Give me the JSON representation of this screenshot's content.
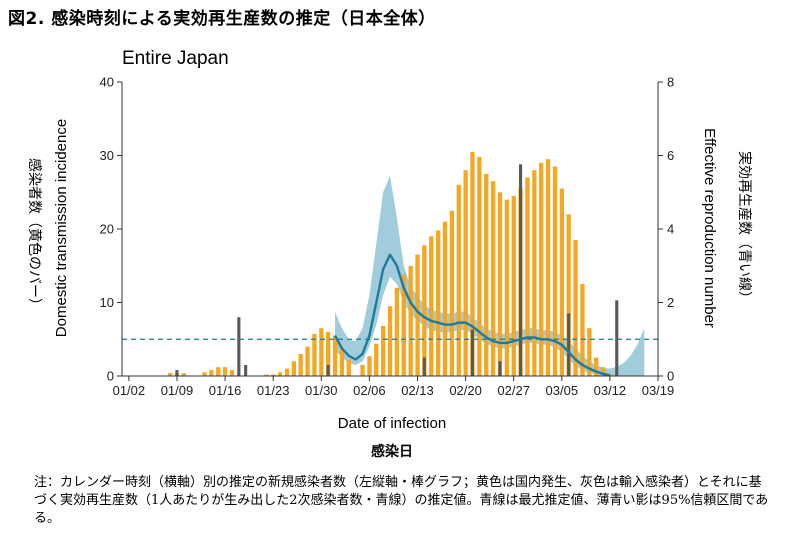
{
  "figure": {
    "title": "図2.  感染時刻による実効再生産数の推定（日本全体）",
    "note": "注：カレンダー時刻（横軸）別の推定の新規感染者数（左縦軸・棒グラフ；黄色は国内発生、灰色は輸入感染者）とそれに基づく実効再生産数（1人あたりが生み出した2次感染者数・青線）の推定値。青線は最尤推定値、薄青い影は95%信頼区間である。"
  },
  "chart_data": {
    "type": "bar",
    "title": "Entire Japan",
    "xlabel": "Date of infection",
    "xlabel_jp": "感染日",
    "ylabel_left": "Domestic transmission incidence",
    "ylabel_left_jp": "感染者数（黄色のバー）",
    "ylabel_right": "Effective reproduction number",
    "ylabel_right_jp": "実効再生産数（青い線）",
    "ylim_left": [
      0,
      40
    ],
    "ylim_right": [
      0,
      8
    ],
    "yticks_left": [
      "0",
      "10",
      "20",
      "30",
      "40"
    ],
    "yticks_right": [
      "0",
      "2",
      "4",
      "6",
      "8"
    ],
    "x_tick_labels": [
      "01/02",
      "01/09",
      "01/16",
      "01/23",
      "01/30",
      "02/06",
      "02/13",
      "02/20",
      "02/27",
      "03/05",
      "03/12",
      "03/19"
    ],
    "x_start": "2020-01-01",
    "x_end": "2020-03-19",
    "reference_line_right": 1,
    "colors": {
      "domestic": "#f5a623",
      "imported": "#595959",
      "rt_line": "#1f7a9a",
      "ci_band": "#8fc3d6",
      "reference": "#1f7a9a"
    },
    "series": [
      {
        "name": "Domestic",
        "kind": "bar",
        "points": [
          [
            "2020-01-08",
            0.4
          ],
          [
            "2020-01-09",
            0.4
          ],
          [
            "2020-01-10",
            0.4
          ],
          [
            "2020-01-13",
            0.5
          ],
          [
            "2020-01-14",
            0.8
          ],
          [
            "2020-01-15",
            1.2
          ],
          [
            "2020-01-16",
            1.2
          ],
          [
            "2020-01-17",
            0.8
          ],
          [
            "2020-01-22",
            0.2
          ],
          [
            "2020-01-23",
            0.2
          ],
          [
            "2020-01-24",
            0.5
          ],
          [
            "2020-01-25",
            1.0
          ],
          [
            "2020-01-26",
            2.0
          ],
          [
            "2020-01-27",
            3.0
          ],
          [
            "2020-01-28",
            4.0
          ],
          [
            "2020-01-29",
            5.7
          ],
          [
            "2020-01-30",
            6.5
          ],
          [
            "2020-01-31",
            6.0
          ],
          [
            "2020-02-01",
            5.5
          ],
          [
            "2020-02-02",
            3.6
          ],
          [
            "2020-02-03",
            2.2
          ],
          [
            "2020-02-05",
            1.5
          ],
          [
            "2020-02-06",
            2.7
          ],
          [
            "2020-02-07",
            4.4
          ],
          [
            "2020-02-08",
            6.8
          ],
          [
            "2020-02-09",
            9.5
          ],
          [
            "2020-02-10",
            12.0
          ],
          [
            "2020-02-11",
            13.8
          ],
          [
            "2020-02-12",
            15.0
          ],
          [
            "2020-02-13",
            16.5
          ],
          [
            "2020-02-14",
            17.8
          ],
          [
            "2020-02-15",
            19.0
          ],
          [
            "2020-02-16",
            19.8
          ],
          [
            "2020-02-17",
            21.0
          ],
          [
            "2020-02-18",
            22.5
          ],
          [
            "2020-02-19",
            26.0
          ],
          [
            "2020-02-20",
            28.0
          ],
          [
            "2020-02-21",
            30.5
          ],
          [
            "2020-02-22",
            29.8
          ],
          [
            "2020-02-23",
            27.5
          ],
          [
            "2020-02-24",
            26.5
          ],
          [
            "2020-02-25",
            25.0
          ],
          [
            "2020-02-26",
            24.0
          ],
          [
            "2020-02-27",
            24.5
          ],
          [
            "2020-02-28",
            25.5
          ],
          [
            "2020-02-29",
            27.0
          ],
          [
            "2020-03-01",
            28.0
          ],
          [
            "2020-03-02",
            29.0
          ],
          [
            "2020-03-03",
            29.5
          ],
          [
            "2020-03-04",
            28.5
          ],
          [
            "2020-03-05",
            25.5
          ],
          [
            "2020-03-06",
            22.0
          ],
          [
            "2020-03-07",
            18.5
          ],
          [
            "2020-03-08",
            12.5
          ],
          [
            "2020-03-09",
            6.5
          ],
          [
            "2020-03-10",
            2.5
          ],
          [
            "2020-03-11",
            1.2
          ],
          [
            "2020-03-12",
            0.3
          ]
        ]
      },
      {
        "name": "Imported",
        "kind": "bar",
        "points": [
          [
            "2020-01-09",
            0.8
          ],
          [
            "2020-01-18",
            8.0
          ],
          [
            "2020-01-19",
            1.5
          ],
          [
            "2020-01-31",
            1.5
          ],
          [
            "2020-02-14",
            2.5
          ],
          [
            "2020-02-21",
            6.3
          ],
          [
            "2020-02-25",
            2.0
          ],
          [
            "2020-02-28",
            28.8
          ],
          [
            "2020-03-06",
            8.5
          ],
          [
            "2020-03-13",
            10.3
          ]
        ]
      },
      {
        "name": "Rt",
        "kind": "line",
        "points": [
          [
            "2020-02-01",
            1.1
          ],
          [
            "2020-02-02",
            0.75
          ],
          [
            "2020-02-03",
            0.55
          ],
          [
            "2020-02-04",
            0.45
          ],
          [
            "2020-02-05",
            0.6
          ],
          [
            "2020-02-06",
            1.1
          ],
          [
            "2020-02-07",
            2.0
          ],
          [
            "2020-02-08",
            2.9
          ],
          [
            "2020-02-09",
            3.3
          ],
          [
            "2020-02-10",
            3.0
          ],
          [
            "2020-02-11",
            2.4
          ],
          [
            "2020-02-12",
            2.0
          ],
          [
            "2020-02-13",
            1.75
          ],
          [
            "2020-02-14",
            1.6
          ],
          [
            "2020-02-15",
            1.5
          ],
          [
            "2020-02-16",
            1.45
          ],
          [
            "2020-02-17",
            1.4
          ],
          [
            "2020-02-18",
            1.4
          ],
          [
            "2020-02-19",
            1.45
          ],
          [
            "2020-02-20",
            1.45
          ],
          [
            "2020-02-21",
            1.35
          ],
          [
            "2020-02-22",
            1.2
          ],
          [
            "2020-02-23",
            1.05
          ],
          [
            "2020-02-24",
            0.95
          ],
          [
            "2020-02-25",
            0.9
          ],
          [
            "2020-02-26",
            0.9
          ],
          [
            "2020-02-27",
            0.95
          ],
          [
            "2020-02-28",
            1.0
          ],
          [
            "2020-02-29",
            1.05
          ],
          [
            "2020-03-01",
            1.05
          ],
          [
            "2020-03-02",
            1.0
          ],
          [
            "2020-03-03",
            1.0
          ],
          [
            "2020-03-04",
            0.95
          ],
          [
            "2020-03-05",
            0.85
          ],
          [
            "2020-03-06",
            0.65
          ],
          [
            "2020-03-07",
            0.45
          ],
          [
            "2020-03-08",
            0.3
          ],
          [
            "2020-03-09",
            0.2
          ],
          [
            "2020-03-10",
            0.12
          ],
          [
            "2020-03-11",
            0.06
          ],
          [
            "2020-03-12",
            0.02
          ]
        ]
      },
      {
        "name": "Rt 95% CI",
        "kind": "band",
        "lower": [
          [
            "2020-02-01",
            0.7
          ],
          [
            "2020-02-02",
            0.5
          ],
          [
            "2020-02-03",
            0.35
          ],
          [
            "2020-02-04",
            0.3
          ],
          [
            "2020-02-05",
            0.4
          ],
          [
            "2020-02-06",
            0.8
          ],
          [
            "2020-02-07",
            1.4
          ],
          [
            "2020-02-08",
            2.2
          ],
          [
            "2020-02-09",
            2.7
          ],
          [
            "2020-02-10",
            2.5
          ],
          [
            "2020-02-11",
            2.0
          ],
          [
            "2020-02-12",
            1.7
          ],
          [
            "2020-02-13",
            1.5
          ],
          [
            "2020-02-14",
            1.35
          ],
          [
            "2020-02-15",
            1.25
          ],
          [
            "2020-02-16",
            1.2
          ],
          [
            "2020-02-17",
            1.18
          ],
          [
            "2020-02-18",
            1.2
          ],
          [
            "2020-02-19",
            1.25
          ],
          [
            "2020-02-20",
            1.25
          ],
          [
            "2020-02-21",
            1.15
          ],
          [
            "2020-02-22",
            1.0
          ],
          [
            "2020-02-23",
            0.88
          ],
          [
            "2020-02-24",
            0.8
          ],
          [
            "2020-02-25",
            0.75
          ],
          [
            "2020-02-26",
            0.75
          ],
          [
            "2020-02-27",
            0.8
          ],
          [
            "2020-02-28",
            0.85
          ],
          [
            "2020-02-29",
            0.9
          ],
          [
            "2020-03-01",
            0.9
          ],
          [
            "2020-03-02",
            0.85
          ],
          [
            "2020-03-03",
            0.85
          ],
          [
            "2020-03-04",
            0.78
          ],
          [
            "2020-03-05",
            0.65
          ],
          [
            "2020-03-06",
            0.45
          ],
          [
            "2020-03-07",
            0.28
          ],
          [
            "2020-03-08",
            0.15
          ],
          [
            "2020-03-09",
            0.08
          ],
          [
            "2020-03-10",
            0.03
          ],
          [
            "2020-03-11",
            0.0
          ],
          [
            "2020-03-12",
            0.0
          ],
          [
            "2020-03-13",
            0.0
          ],
          [
            "2020-03-14",
            0.0
          ],
          [
            "2020-03-15",
            0.0
          ],
          [
            "2020-03-16",
            0.0
          ],
          [
            "2020-03-17",
            0.0
          ]
        ],
        "upper": [
          [
            "2020-02-01",
            1.75
          ],
          [
            "2020-02-02",
            1.3
          ],
          [
            "2020-02-03",
            1.0
          ],
          [
            "2020-02-04",
            0.95
          ],
          [
            "2020-02-05",
            1.3
          ],
          [
            "2020-02-06",
            2.2
          ],
          [
            "2020-02-07",
            3.6
          ],
          [
            "2020-02-08",
            5.0
          ],
          [
            "2020-02-09",
            5.45
          ],
          [
            "2020-02-10",
            4.3
          ],
          [
            "2020-02-11",
            3.0
          ],
          [
            "2020-02-12",
            2.45
          ],
          [
            "2020-02-13",
            2.15
          ],
          [
            "2020-02-14",
            1.95
          ],
          [
            "2020-02-15",
            1.8
          ],
          [
            "2020-02-16",
            1.75
          ],
          [
            "2020-02-17",
            1.7
          ],
          [
            "2020-02-18",
            1.7
          ],
          [
            "2020-02-19",
            1.75
          ],
          [
            "2020-02-20",
            1.75
          ],
          [
            "2020-02-21",
            1.6
          ],
          [
            "2020-02-22",
            1.45
          ],
          [
            "2020-02-23",
            1.3
          ],
          [
            "2020-02-24",
            1.2
          ],
          [
            "2020-02-25",
            1.15
          ],
          [
            "2020-02-26",
            1.15
          ],
          [
            "2020-02-27",
            1.2
          ],
          [
            "2020-02-28",
            1.25
          ],
          [
            "2020-02-29",
            1.3
          ],
          [
            "2020-03-01",
            1.3
          ],
          [
            "2020-03-02",
            1.25
          ],
          [
            "2020-03-03",
            1.25
          ],
          [
            "2020-03-04",
            1.2
          ],
          [
            "2020-03-05",
            1.1
          ],
          [
            "2020-03-06",
            0.95
          ],
          [
            "2020-03-07",
            0.75
          ],
          [
            "2020-03-08",
            0.55
          ],
          [
            "2020-03-09",
            0.4
          ],
          [
            "2020-03-10",
            0.3
          ],
          [
            "2020-03-11",
            0.22
          ],
          [
            "2020-03-12",
            0.2
          ],
          [
            "2020-03-13",
            0.25
          ],
          [
            "2020-03-14",
            0.35
          ],
          [
            "2020-03-15",
            0.55
          ],
          [
            "2020-03-16",
            0.85
          ],
          [
            "2020-03-17",
            1.3
          ]
        ]
      }
    ]
  }
}
